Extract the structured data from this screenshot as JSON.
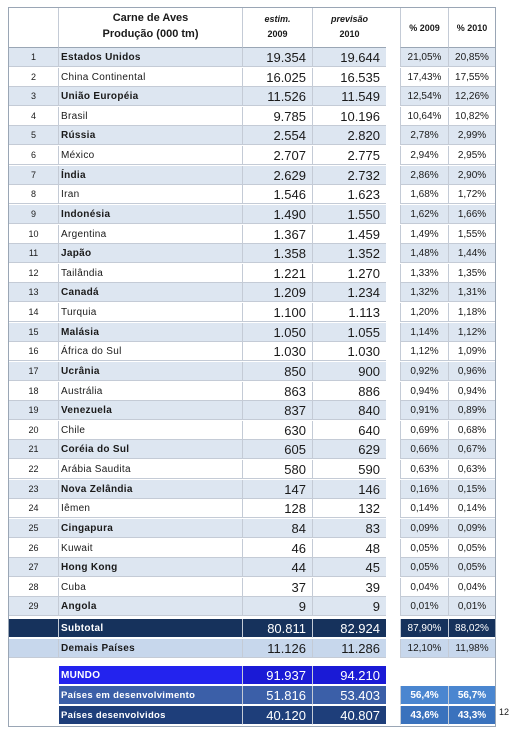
{
  "header": {
    "title_line1": "Carne de Aves",
    "title_line2": "Produção (000 tm)",
    "col2009_line1": "estim.",
    "col2009_line2": "2009",
    "col2010_line1": "previsão",
    "col2010_line2": "2010",
    "pct2009": "% 2009",
    "pct2010": "% 2010"
  },
  "rows": [
    {
      "rank": "1",
      "country": "Estados Unidos",
      "v2009": "19.354",
      "v2010": "19.644",
      "p2009": "21,05%",
      "p2010": "20,85%"
    },
    {
      "rank": "2",
      "country": "China Continental",
      "v2009": "16.025",
      "v2010": "16.535",
      "p2009": "17,43%",
      "p2010": "17,55%"
    },
    {
      "rank": "3",
      "country": "União Européia",
      "v2009": "11.526",
      "v2010": "11.549",
      "p2009": "12,54%",
      "p2010": "12,26%"
    },
    {
      "rank": "4",
      "country": "Brasil",
      "v2009": "9.785",
      "v2010": "10.196",
      "p2009": "10,64%",
      "p2010": "10,82%"
    },
    {
      "rank": "5",
      "country": "Rússia",
      "v2009": "2.554",
      "v2010": "2.820",
      "p2009": "2,78%",
      "p2010": "2,99%"
    },
    {
      "rank": "6",
      "country": "México",
      "v2009": "2.707",
      "v2010": "2.775",
      "p2009": "2,94%",
      "p2010": "2,95%"
    },
    {
      "rank": "7",
      "country": "Índia",
      "v2009": "2.629",
      "v2010": "2.732",
      "p2009": "2,86%",
      "p2010": "2,90%"
    },
    {
      "rank": "8",
      "country": "Iran",
      "v2009": "1.546",
      "v2010": "1.623",
      "p2009": "1,68%",
      "p2010": "1,72%"
    },
    {
      "rank": "9",
      "country": "Indonésia",
      "v2009": "1.490",
      "v2010": "1.550",
      "p2009": "1,62%",
      "p2010": "1,66%"
    },
    {
      "rank": "10",
      "country": "Argentina",
      "v2009": "1.367",
      "v2010": "1.459",
      "p2009": "1,49%",
      "p2010": "1,55%"
    },
    {
      "rank": "11",
      "country": "Japão",
      "v2009": "1.358",
      "v2010": "1.352",
      "p2009": "1,48%",
      "p2010": "1,44%"
    },
    {
      "rank": "12",
      "country": "Tailândia",
      "v2009": "1.221",
      "v2010": "1.270",
      "p2009": "1,33%",
      "p2010": "1,35%"
    },
    {
      "rank": "13",
      "country": "Canadá",
      "v2009": "1.209",
      "v2010": "1.234",
      "p2009": "1,32%",
      "p2010": "1,31%"
    },
    {
      "rank": "14",
      "country": "Turquia",
      "v2009": "1.100",
      "v2010": "1.113",
      "p2009": "1,20%",
      "p2010": "1,18%"
    },
    {
      "rank": "15",
      "country": "Malásia",
      "v2009": "1.050",
      "v2010": "1.055",
      "p2009": "1,14%",
      "p2010": "1,12%"
    },
    {
      "rank": "16",
      "country": "África do Sul",
      "v2009": "1.030",
      "v2010": "1.030",
      "p2009": "1,12%",
      "p2010": "1,09%"
    },
    {
      "rank": "17",
      "country": "Ucrânia",
      "v2009": "850",
      "v2010": "900",
      "p2009": "0,92%",
      "p2010": "0,96%"
    },
    {
      "rank": "18",
      "country": "Austrália",
      "v2009": "863",
      "v2010": "886",
      "p2009": "0,94%",
      "p2010": "0,94%"
    },
    {
      "rank": "19",
      "country": "Venezuela",
      "v2009": "837",
      "v2010": "840",
      "p2009": "0,91%",
      "p2010": "0,89%"
    },
    {
      "rank": "20",
      "country": "Chile",
      "v2009": "630",
      "v2010": "640",
      "p2009": "0,69%",
      "p2010": "0,68%"
    },
    {
      "rank": "21",
      "country": "Coréia do Sul",
      "v2009": "605",
      "v2010": "629",
      "p2009": "0,66%",
      "p2010": "0,67%"
    },
    {
      "rank": "22",
      "country": "Arábia Saudita",
      "v2009": "580",
      "v2010": "590",
      "p2009": "0,63%",
      "p2010": "0,63%"
    },
    {
      "rank": "23",
      "country": "Nova Zelândia",
      "v2009": "147",
      "v2010": "146",
      "p2009": "0,16%",
      "p2010": "0,15%"
    },
    {
      "rank": "24",
      "country": "Iêmen",
      "v2009": "128",
      "v2010": "132",
      "p2009": "0,14%",
      "p2010": "0,14%"
    },
    {
      "rank": "25",
      "country": "Cingapura",
      "v2009": "84",
      "v2010": "83",
      "p2009": "0,09%",
      "p2010": "0,09%"
    },
    {
      "rank": "26",
      "country": "Kuwait",
      "v2009": "46",
      "v2010": "48",
      "p2009": "0,05%",
      "p2010": "0,05%"
    },
    {
      "rank": "27",
      "country": "Hong Kong",
      "v2009": "44",
      "v2010": "45",
      "p2009": "0,05%",
      "p2010": "0,05%"
    },
    {
      "rank": "28",
      "country": "Cuba",
      "v2009": "37",
      "v2010": "39",
      "p2009": "0,04%",
      "p2010": "0,04%"
    },
    {
      "rank": "29",
      "country": "Angola",
      "v2009": "9",
      "v2010": "9",
      "p2009": "0,01%",
      "p2010": "0,01%"
    }
  ],
  "subtotal": {
    "label": "Subtotal",
    "v2009": "80.811",
    "v2010": "82.924",
    "p2009": "87,90%",
    "p2010": "88,02%"
  },
  "demais": {
    "label": "Demais Países",
    "v2009": "11.126",
    "v2010": "11.286",
    "p2009": "12,10%",
    "p2010": "11,98%"
  },
  "mundo": {
    "label": "MUNDO",
    "v2009": "91.937",
    "v2010": "94.210"
  },
  "em_desenvolvimento": {
    "label": "Países em desenvolvimento",
    "v2009": "51.816",
    "v2010": "53.403",
    "p2009": "56,4%",
    "p2010": "56,7%"
  },
  "desenvolvidos": {
    "label": "Países desenvolvidos",
    "v2009": "40.120",
    "v2010": "40.807",
    "p2009": "43,6%",
    "p2010": "43,3%"
  },
  "page_number": "12",
  "colors": {
    "subtotal": "#16325c",
    "mundo": "#2323ee",
    "shade": "#dde6f1"
  }
}
